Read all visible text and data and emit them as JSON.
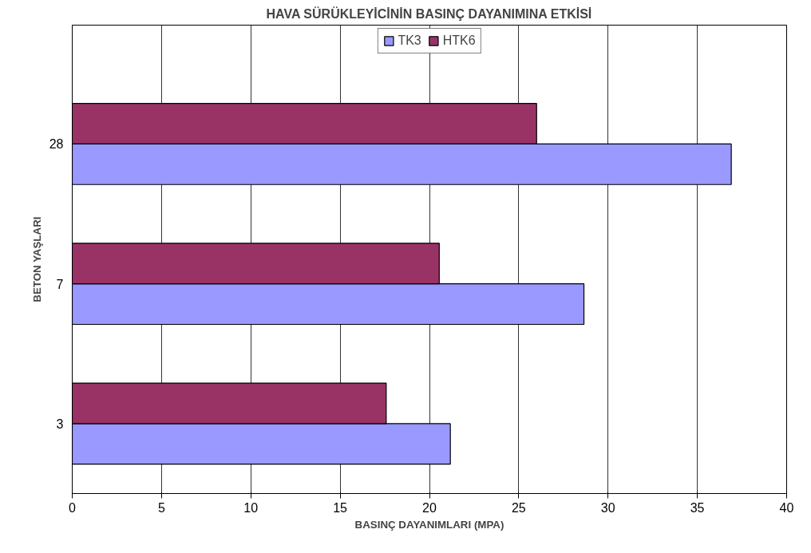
{
  "chart_data": {
    "type": "bar",
    "orientation": "horizontal",
    "title": "HAVA SÜRÜKLEYİCİNİN BASINÇ DAYANIMINA ETKİSİ",
    "xlabel": "BASINÇ DAYANIMLARI (MPA)",
    "ylabel": "BETON YAŞLARI",
    "categories": [
      "28",
      "7",
      "3"
    ],
    "series": [
      {
        "name": "TK3",
        "color": "#9999ff",
        "values": [
          36.9,
          28.65,
          21.17
        ]
      },
      {
        "name": "HTK6",
        "color": "#993366",
        "values": [
          26.0,
          20.55,
          17.58
        ]
      }
    ],
    "xlim": [
      0,
      40
    ],
    "xticks": [
      0,
      5,
      10,
      15,
      20,
      25,
      30,
      35,
      40
    ],
    "grid": "x",
    "legend": "top"
  }
}
